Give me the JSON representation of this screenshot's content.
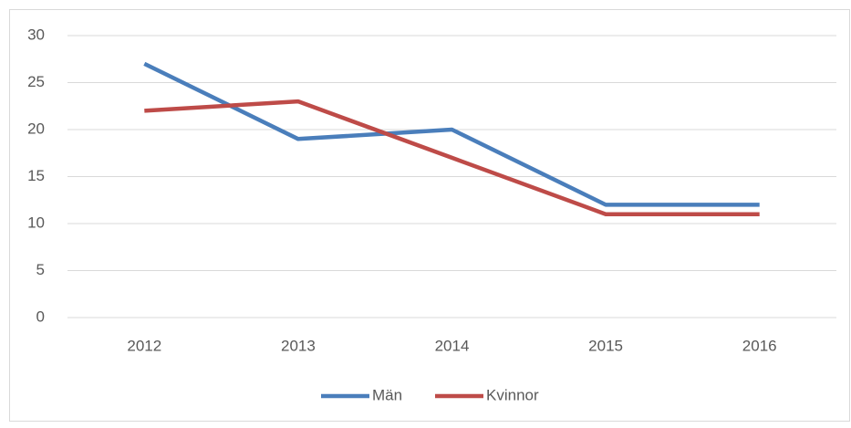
{
  "chart_data": {
    "type": "line",
    "categories": [
      "2012",
      "2013",
      "2014",
      "2015",
      "2016"
    ],
    "series": [
      {
        "name": "Män",
        "color": "#4a7ebb",
        "values": [
          27,
          19,
          20,
          12,
          12
        ]
      },
      {
        "name": "Kvinnor",
        "color": "#be4b48",
        "values": [
          22,
          23,
          17,
          11,
          11
        ]
      }
    ],
    "ylim": [
      0,
      30
    ],
    "yticks": [
      0,
      5,
      10,
      15,
      20,
      25,
      30
    ],
    "grid": true,
    "legend": "bottom"
  }
}
